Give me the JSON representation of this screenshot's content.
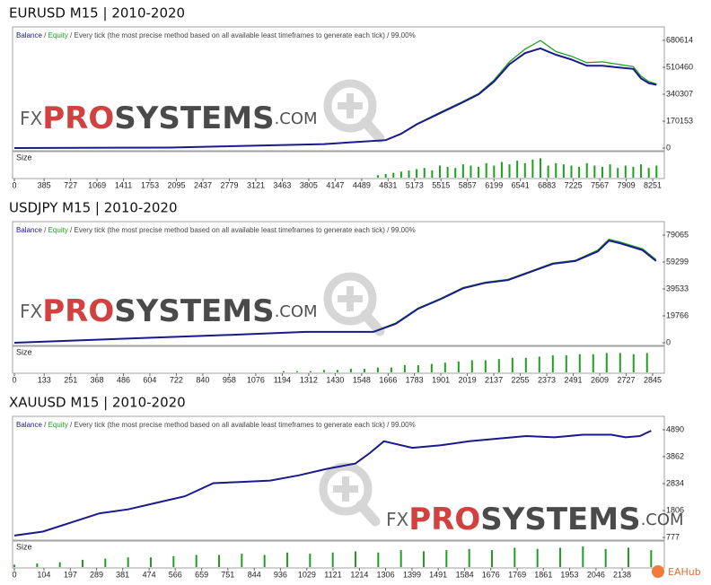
{
  "chart_data": [
    {
      "type": "line",
      "title": "EURUSD M15 | 2010-2020",
      "legend_separator": " / ",
      "subtitle": "Every tick (the most precise method based on all available least timeframes to generate each tick) / 99.00%",
      "x": [
        0,
        2000,
        4000,
        4800,
        5000,
        5200,
        5500,
        5800,
        6000,
        6200,
        6400,
        6600,
        6800,
        7000,
        7200,
        7400,
        7600,
        7800,
        8000,
        8100,
        8200,
        8300
      ],
      "series": [
        {
          "name": "Balance",
          "color": "#1a1a8c",
          "values": [
            0,
            3000,
            25000,
            50000,
            90000,
            150000,
            220000,
            290000,
            340000,
            420000,
            530000,
            600000,
            630000,
            590000,
            560000,
            520000,
            520000,
            510000,
            500000,
            440000,
            410000,
            400000
          ]
        },
        {
          "name": "Equity",
          "color": "#1fa01f",
          "values": [
            0,
            3000,
            25000,
            50000,
            92000,
            152000,
            225000,
            295000,
            345000,
            430000,
            545000,
            625000,
            680000,
            610000,
            580000,
            540000,
            545000,
            530000,
            515000,
            455000,
            420000,
            405000
          ]
        }
      ],
      "ylim": [
        -11344,
        760017
      ],
      "yticks": [
        0,
        170153,
        340307,
        510460,
        680614
      ],
      "xlim": [
        0,
        8378
      ],
      "xticks": [
        0,
        385,
        727,
        1069,
        1411,
        1753,
        2095,
        2437,
        2779,
        3121,
        3463,
        3805,
        4147,
        4489,
        4831,
        5173,
        5515,
        5857,
        6199,
        6541,
        6883,
        7225,
        7567,
        7909,
        8251
      ],
      "size_label": "Size",
      "size_color": "#1fa01f",
      "size_ylim": [
        0,
        1
      ],
      "size_x": [
        4700,
        4800,
        4900,
        5000,
        5100,
        5200,
        5300,
        5400,
        5500,
        5600,
        5700,
        5800,
        5900,
        6000,
        6100,
        6200,
        6300,
        6400,
        6500,
        6600,
        6700,
        6800,
        6900,
        7000,
        7100,
        7200,
        7300,
        7400,
        7500,
        7600,
        7700,
        7800,
        7900,
        8000,
        8100,
        8200,
        8300
      ],
      "size_values": [
        0.1,
        0.15,
        0.2,
        0.25,
        0.3,
        0.35,
        0.4,
        0.3,
        0.5,
        0.45,
        0.4,
        0.55,
        0.5,
        0.45,
        0.6,
        0.5,
        0.65,
        0.55,
        0.7,
        0.6,
        0.75,
        0.8,
        0.5,
        0.6,
        0.55,
        0.5,
        0.45,
        0.6,
        0.5,
        0.45,
        0.55,
        0.4,
        0.5,
        0.45,
        0.55,
        0.4,
        0.5
      ]
    },
    {
      "type": "line",
      "title": "USDJPY M15 | 2010-2020",
      "legend_separator": " / ",
      "subtitle": "Every tick (the most precise method based on all available least timeframes to generate each tick) / 99.00%",
      "x": [
        0,
        500,
        1000,
        1300,
        1600,
        1700,
        1800,
        1900,
        2000,
        2100,
        2200,
        2300,
        2400,
        2500,
        2600,
        2650,
        2700,
        2800,
        2860
      ],
      "series": [
        {
          "name": "Balance",
          "color": "#1a1a8c",
          "values": [
            0,
            3000,
            6000,
            8000,
            8000,
            14000,
            25000,
            32000,
            40000,
            44000,
            46000,
            52000,
            58000,
            60000,
            67000,
            75000,
            73000,
            68000,
            60000
          ]
        },
        {
          "name": "Equity",
          "color": "#1fa01f",
          "values": [
            0,
            3000,
            6000,
            8000,
            8200,
            14500,
            25500,
            32500,
            40500,
            44500,
            46500,
            52500,
            58500,
            60500,
            68000,
            76000,
            74000,
            69000,
            61000
          ]
        }
      ],
      "ylim": [
        -1318,
        88288
      ],
      "yticks": [
        0,
        19766,
        39533,
        59299,
        79065
      ],
      "xlim": [
        0,
        2889
      ],
      "xticks": [
        0,
        133,
        251,
        368,
        486,
        604,
        722,
        840,
        958,
        1076,
        1194,
        1312,
        1430,
        1548,
        1666,
        1783,
        1901,
        2019,
        2137,
        2255,
        2373,
        2491,
        2609,
        2727,
        2845
      ],
      "size_label": "Size",
      "size_color": "#1fa01f",
      "size_ylim": [
        0,
        1
      ],
      "size_x": [
        1200,
        1260,
        1320,
        1380,
        1440,
        1500,
        1560,
        1620,
        1680,
        1740,
        1800,
        1860,
        1920,
        1980,
        2040,
        2100,
        2160,
        2220,
        2280,
        2340,
        2400,
        2460,
        2520,
        2580,
        2640,
        2700,
        2760,
        2820
      ],
      "size_values": [
        0.05,
        0.05,
        0.05,
        0.1,
        0.1,
        0.15,
        0.15,
        0.2,
        0.2,
        0.3,
        0.3,
        0.35,
        0.4,
        0.45,
        0.5,
        0.5,
        0.55,
        0.6,
        0.6,
        0.65,
        0.7,
        0.7,
        0.75,
        0.75,
        0.8,
        0.8,
        0.75,
        0.8
      ]
    },
    {
      "type": "line",
      "title": "XAUUSD M15 | 2010-2020",
      "legend_separator": " / ",
      "subtitle": "Every tick (the most precise method based on all available least timeframes to generate each tick) / 99.00%",
      "x": [
        0,
        100,
        200,
        300,
        400,
        500,
        600,
        700,
        800,
        900,
        1000,
        1100,
        1200,
        1250,
        1300,
        1400,
        1500,
        1600,
        1700,
        1800,
        1900,
        2000,
        2100,
        2150,
        2200,
        2240
      ],
      "series": [
        {
          "name": "Balance",
          "color": "#1a1a8c",
          "values": [
            850,
            1000,
            1350,
            1700,
            1850,
            2100,
            2350,
            2850,
            2900,
            2950,
            3150,
            3400,
            3600,
            4000,
            4450,
            4200,
            4300,
            4450,
            4550,
            4650,
            4600,
            4700,
            4700,
            4600,
            4650,
            4850
          ]
        },
        {
          "name": "Equity",
          "color": "#1fa01f",
          "values": [
            850,
            1000,
            1350,
            1700,
            1850,
            2100,
            2350,
            2850,
            2900,
            2950,
            3150,
            3400,
            3600,
            4000,
            4450,
            4200,
            4300,
            4450,
            4550,
            4650,
            4600,
            4700,
            4700,
            4600,
            4650,
            4850
          ]
        }
      ],
      "ylim": [
        709,
        5369
      ],
      "yticks": [
        777,
        1806,
        2834,
        3862,
        4890
      ],
      "xlim": [
        0,
        2280
      ],
      "xticks": [
        0,
        104,
        197,
        289,
        381,
        474,
        566,
        659,
        751,
        844,
        936,
        1029,
        1121,
        1214,
        1306,
        1399,
        1491,
        1584,
        1676,
        1769,
        1861,
        1953,
        2046,
        2138
      ],
      "size_label": "Size",
      "size_color": "#1fa01f",
      "size_ylim": [
        0,
        1
      ],
      "size_x": [
        0,
        80,
        160,
        240,
        320,
        400,
        480,
        560,
        640,
        720,
        800,
        880,
        960,
        1040,
        1120,
        1200,
        1280,
        1360,
        1440,
        1520,
        1600,
        1680,
        1760,
        1840,
        1920,
        2000,
        2080,
        2160,
        2240
      ],
      "size_values": [
        0.1,
        0.15,
        0.2,
        0.3,
        0.35,
        0.4,
        0.4,
        0.45,
        0.5,
        0.5,
        0.55,
        0.5,
        0.6,
        0.55,
        0.6,
        0.65,
        0.6,
        0.7,
        0.65,
        0.7,
        0.75,
        0.7,
        0.8,
        0.75,
        0.8,
        0.85,
        0.75,
        0.8,
        0.7
      ]
    }
  ],
  "watermark": {
    "prefix": "FX",
    "brand_a": "PRO",
    "brand_b": "SYSTEMS",
    "suffix": ".COM"
  },
  "badge": "EAHub"
}
